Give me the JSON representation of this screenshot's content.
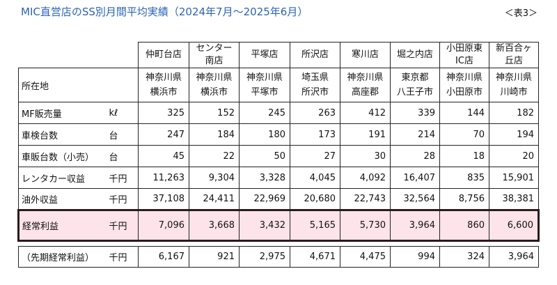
{
  "title": "MIC直営店のSS別月間平均実績（2024年7月～2025年6月）",
  "table_ref": "＜表3＞",
  "stores": [
    {
      "name1": "仲町台店",
      "name2": "",
      "pref": "神奈川県",
      "city": "横浜市"
    },
    {
      "name1": "センター",
      "name2": "南店",
      "pref": "神奈川県",
      "city": "横浜市"
    },
    {
      "name1": "平塚店",
      "name2": "",
      "pref": "神奈川県",
      "city": "平塚市"
    },
    {
      "name1": "所沢店",
      "name2": "",
      "pref": "埼玉県",
      "city": "所沢市"
    },
    {
      "name1": "寒川店",
      "name2": "",
      "pref": "神奈川県",
      "city": "高座郡"
    },
    {
      "name1": "堀之内店",
      "name2": "",
      "pref": "東京都",
      "city": "八王子市"
    },
    {
      "name1": "小田原東",
      "name2": "IC店",
      "pref": "神奈川県",
      "city": "小田原市"
    },
    {
      "name1": "新百合ヶ",
      "name2": "丘店",
      "pref": "神奈川県",
      "city": "川崎市"
    }
  ],
  "location_label": "所在地",
  "rows": [
    {
      "label": "MF販売量",
      "unit": "kℓ",
      "values": [
        "325",
        "152",
        "245",
        "263",
        "412",
        "339",
        "144",
        "182"
      ]
    },
    {
      "label": "車検台数",
      "unit": "台",
      "values": [
        "247",
        "184",
        "180",
        "173",
        "191",
        "214",
        "70",
        "194"
      ]
    },
    {
      "label": "車販台数（小売）",
      "unit": "台",
      "values": [
        "45",
        "22",
        "50",
        "27",
        "30",
        "28",
        "18",
        "20"
      ]
    },
    {
      "label": "レンタカー収益",
      "unit": "千円",
      "values": [
        "11,263",
        "9,304",
        "3,328",
        "4,045",
        "4,092",
        "16,407",
        "835",
        "15,901"
      ]
    },
    {
      "label": "油外収益",
      "unit": "千円",
      "values": [
        "37,108",
        "24,411",
        "22,969",
        "20,680",
        "22,743",
        "32,564",
        "8,756",
        "38,381"
      ]
    }
  ],
  "highlight_row": {
    "label": "経常利益",
    "unit": "千円",
    "values": [
      "7,096",
      "3,668",
      "3,432",
      "5,165",
      "5,730",
      "3,964",
      "860",
      "6,600"
    ]
  },
  "prev_row": {
    "label": "（先期経常利益）",
    "unit": "千円",
    "values": [
      "6,167",
      "921",
      "2,975",
      "4,671",
      "4,475",
      "994",
      "324",
      "3,964"
    ]
  },
  "colors": {
    "title": "#2a63b8",
    "highlight_bg": "#fde4ea"
  }
}
